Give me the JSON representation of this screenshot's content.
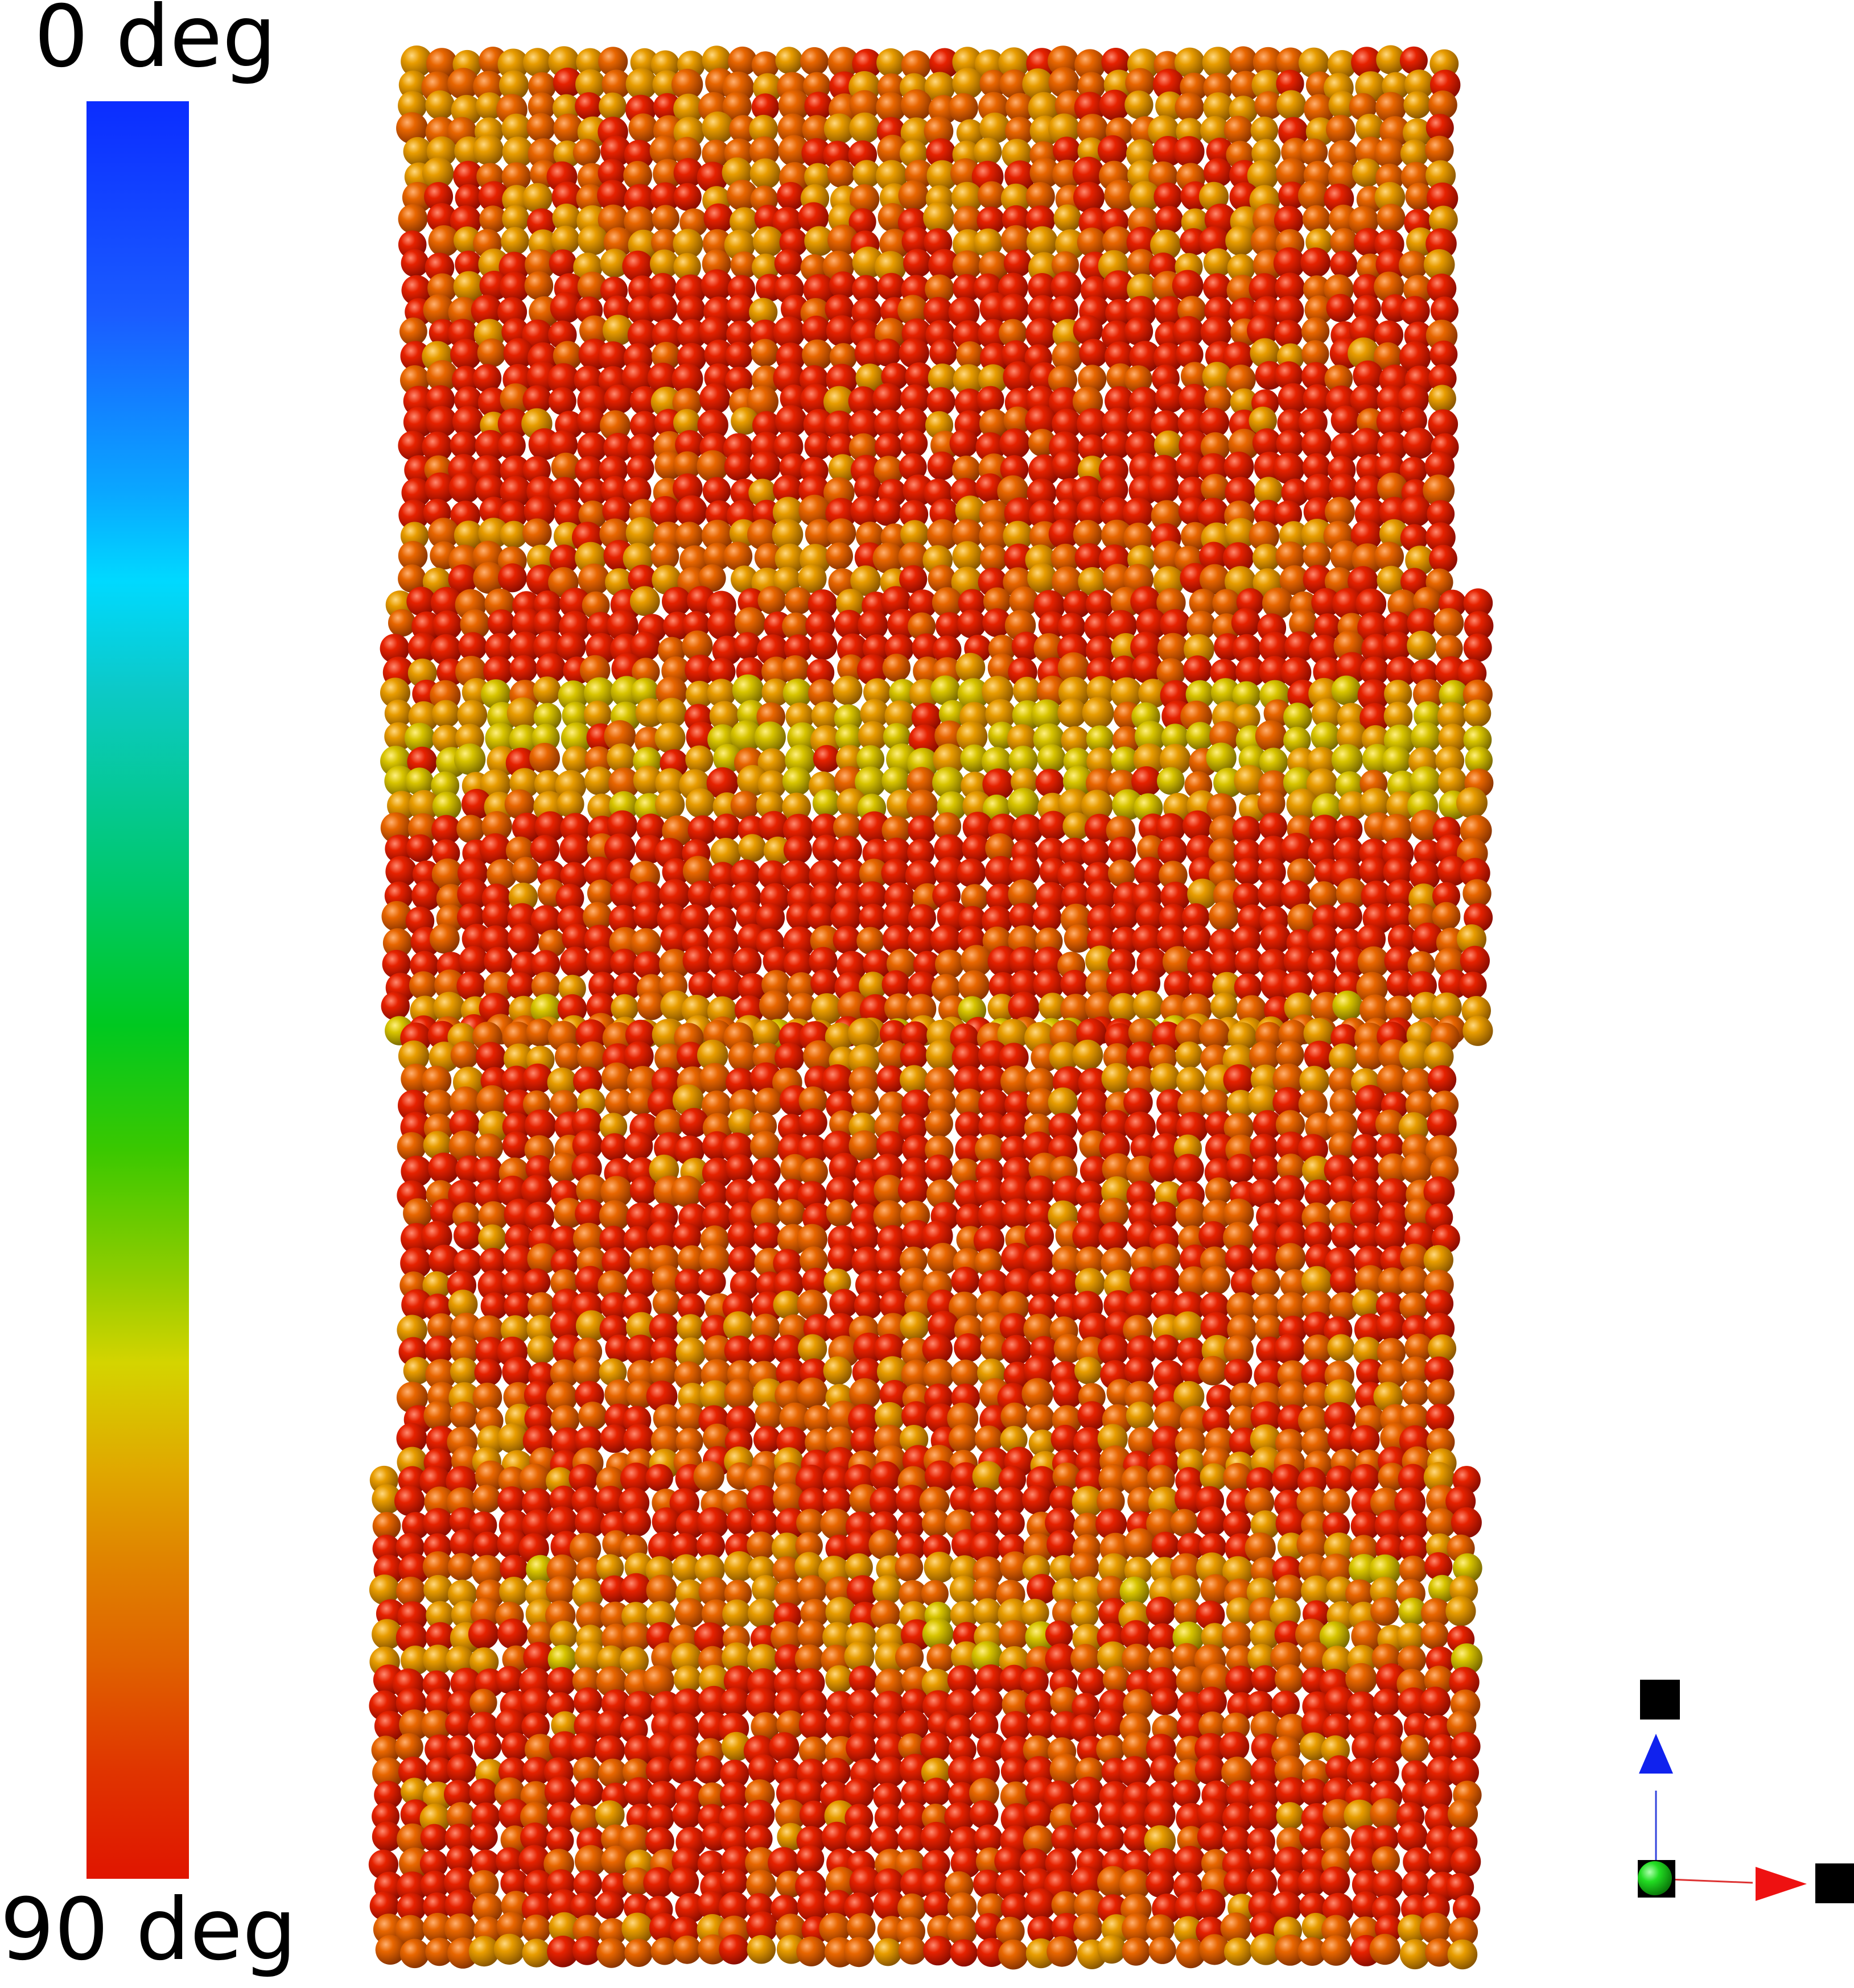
{
  "colorbar": {
    "top_label": "0 deg",
    "bottom_label": "90 deg"
  },
  "colors": {
    "red": "#d81a00",
    "orange": "#e06a00",
    "amber": "#e29a00",
    "yellow": "#d8c800",
    "axis_up": "#1022ee",
    "axis_right": "#ee1111",
    "axis_origin": "#22dd22"
  },
  "icons": [
    "axis-triad-icon",
    "axis-up-arrow-icon",
    "axis-right-arrow-icon",
    "axis-origin-icon"
  ]
}
